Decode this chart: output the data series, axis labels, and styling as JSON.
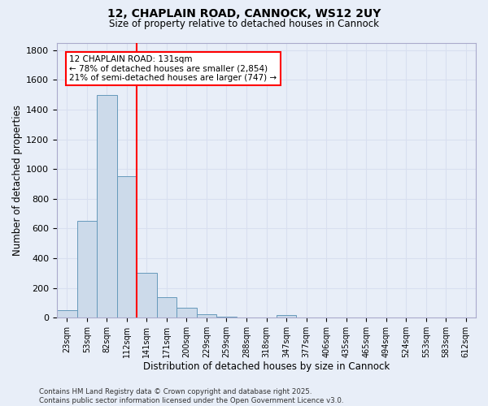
{
  "title_line1": "12, CHAPLAIN ROAD, CANNOCK, WS12 2UY",
  "title_line2": "Size of property relative to detached houses in Cannock",
  "xlabel": "Distribution of detached houses by size in Cannock",
  "ylabel": "Number of detached properties",
  "bar_labels": [
    "23sqm",
    "53sqm",
    "82sqm",
    "112sqm",
    "141sqm",
    "171sqm",
    "200sqm",
    "229sqm",
    "259sqm",
    "288sqm",
    "318sqm",
    "347sqm",
    "377sqm",
    "406sqm",
    "435sqm",
    "465sqm",
    "494sqm",
    "524sqm",
    "553sqm",
    "583sqm",
    "612sqm"
  ],
  "bar_values": [
    50,
    650,
    1500,
    950,
    300,
    140,
    65,
    22,
    8,
    0,
    0,
    15,
    0,
    0,
    0,
    0,
    0,
    0,
    0,
    0,
    0
  ],
  "bar_color": "#ccdaea",
  "bar_edge_color": "#6699bb",
  "grid_color": "#d8dff0",
  "background_color": "#e8eef8",
  "annotation_text": "12 CHAPLAIN ROAD: 131sqm\n← 78% of detached houses are smaller (2,854)\n21% of semi-detached houses are larger (747) →",
  "annotation_box_color": "white",
  "annotation_box_edge": "red",
  "ylim": [
    0,
    1850
  ],
  "yticks": [
    0,
    200,
    400,
    600,
    800,
    1000,
    1200,
    1400,
    1600,
    1800
  ],
  "footer_line1": "Contains HM Land Registry data © Crown copyright and database right 2025.",
  "footer_line2": "Contains public sector information licensed under the Open Government Licence v3.0."
}
